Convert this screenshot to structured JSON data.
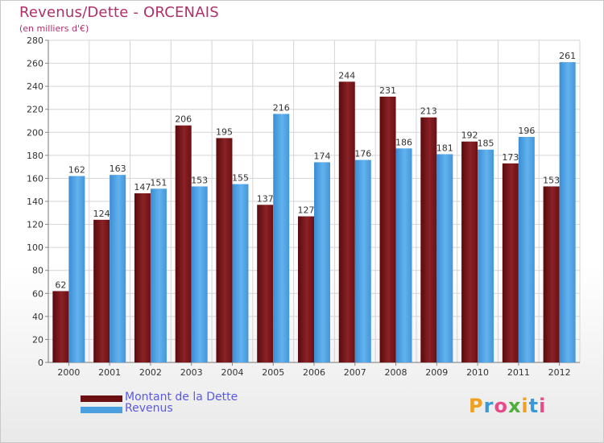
{
  "header": {
    "title": "Revenus/Dette - ORCENAIS",
    "subtitle": "(en milliers d'€)"
  },
  "chart_data": {
    "type": "bar",
    "title": "Revenus/Dette - ORCENAIS",
    "subtitle": "(en milliers d'€)",
    "categories": [
      "2000",
      "2001",
      "2002",
      "2003",
      "2004",
      "2005",
      "2006",
      "2007",
      "2008",
      "2009",
      "2010",
      "2011",
      "2012"
    ],
    "series": [
      {
        "name": "Montant de la Dette",
        "color": "#7b1518",
        "values": [
          62,
          124,
          147,
          206,
          195,
          137,
          127,
          244,
          231,
          213,
          192,
          173,
          153
        ]
      },
      {
        "name": "Revenus",
        "color": "#4a9fe0",
        "values": [
          162,
          163,
          151,
          153,
          155,
          216,
          174,
          176,
          186,
          181,
          185,
          196,
          261
        ]
      }
    ],
    "ylim": [
      0,
      280
    ],
    "yticks": [
      0,
      20,
      40,
      60,
      80,
      100,
      120,
      140,
      160,
      180,
      200,
      220,
      240,
      260,
      280
    ],
    "grid": true,
    "legend_position": "bottom-left"
  },
  "legend": {
    "items": [
      {
        "label": "Montant de la Dette",
        "color": "#6b0f12"
      },
      {
        "label": "Revenus",
        "color": "#4a9fe0"
      }
    ]
  },
  "logo": {
    "letters": [
      "P",
      "r",
      "o",
      "x",
      "i",
      "t",
      "i"
    ],
    "colors": [
      "#f0a020",
      "#3a9ad8",
      "#e84b8a",
      "#4fae3a",
      "#f0a020",
      "#3a9ad8",
      "#e84b8a"
    ]
  }
}
